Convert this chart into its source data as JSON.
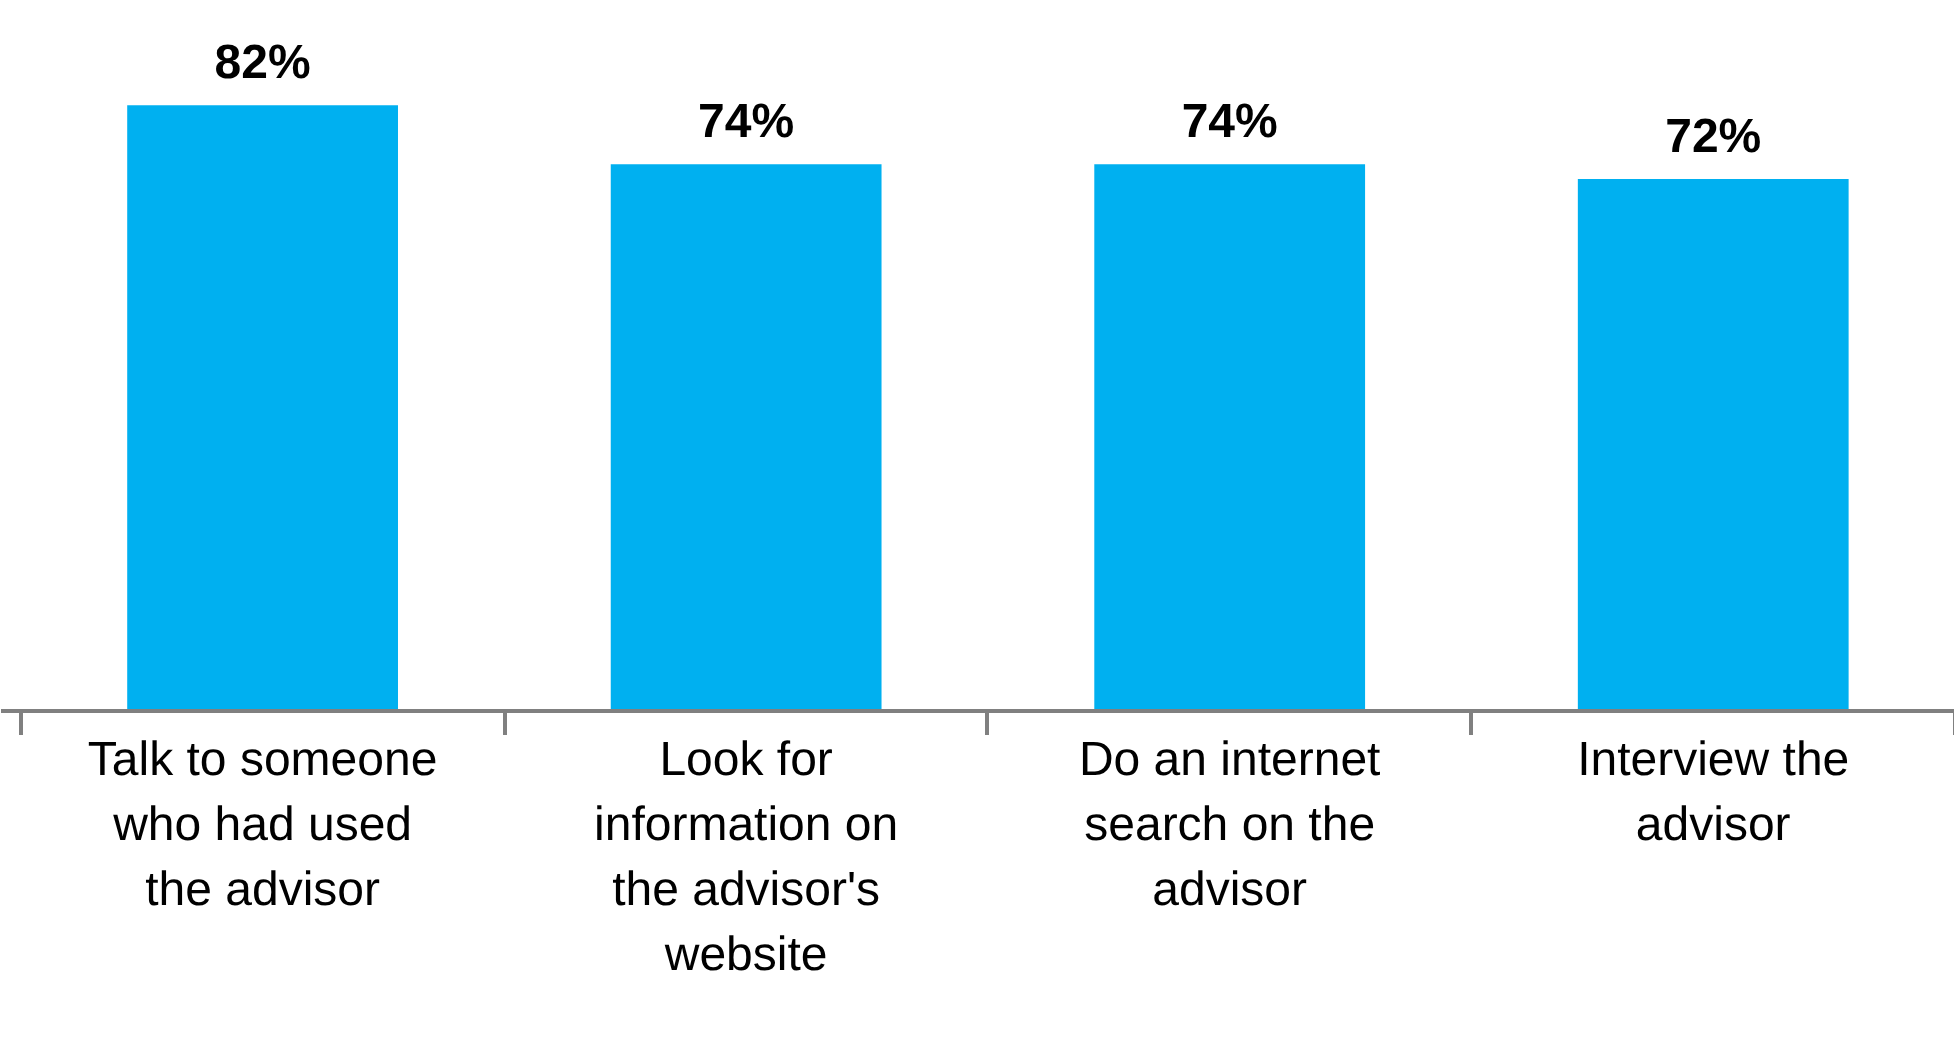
{
  "chart_data": {
    "type": "bar",
    "categories": [
      "Talk to someone who had used the advisor",
      "Look for information on the advisor's website",
      "Do an internet search on the advisor",
      "Interview the advisor"
    ],
    "values": [
      82,
      74,
      74,
      72
    ],
    "value_labels": [
      "82%",
      "74%",
      "74%",
      "72%"
    ],
    "color": "#00b0f0"
  }
}
